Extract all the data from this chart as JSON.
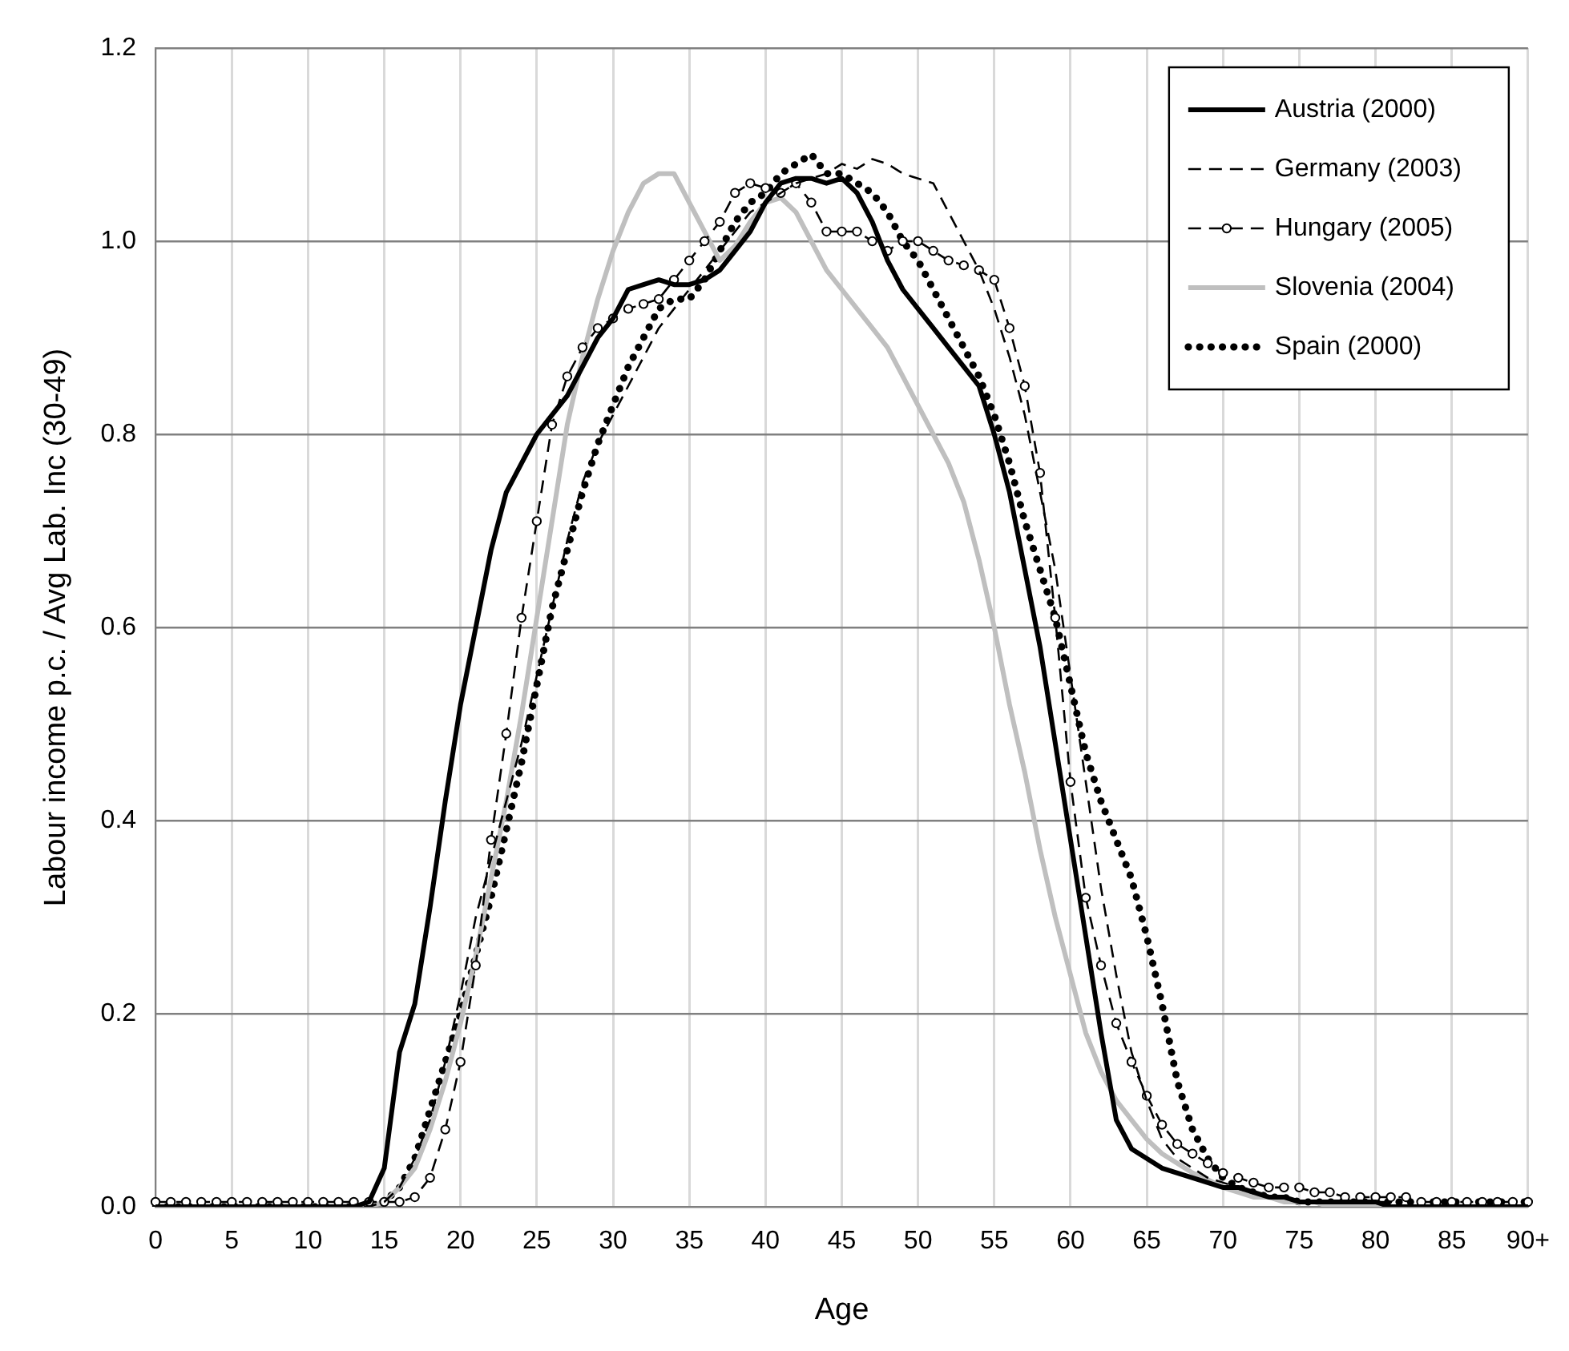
{
  "chart_data": {
    "type": "line",
    "xlabel": "Age",
    "ylabel": "Labour income p.c. / Avg Lab. Inc (30-49)",
    "categories": [
      "0",
      null,
      null,
      null,
      null,
      "5",
      null,
      null,
      null,
      null,
      "10",
      null,
      null,
      null,
      null,
      "15",
      null,
      null,
      null,
      null,
      "20",
      null,
      null,
      null,
      null,
      "25",
      null,
      null,
      null,
      null,
      "30",
      null,
      null,
      null,
      null,
      "35",
      null,
      null,
      null,
      null,
      "40",
      null,
      null,
      null,
      null,
      "45",
      null,
      null,
      null,
      null,
      "50",
      null,
      null,
      null,
      null,
      "55",
      null,
      null,
      null,
      null,
      "60",
      null,
      null,
      null,
      null,
      "65",
      null,
      null,
      null,
      null,
      "70",
      null,
      null,
      null,
      null,
      "75",
      null,
      null,
      null,
      null,
      "80",
      null,
      null,
      null,
      null,
      "85",
      null,
      null,
      null,
      null,
      "90+"
    ],
    "ylim": [
      0,
      1.2
    ],
    "yticks": [
      {
        "value": 0,
        "label": "0.0"
      },
      {
        "value": 0.2,
        "label": "0.2"
      },
      {
        "value": 0.4,
        "label": "0.4"
      },
      {
        "value": 0.6,
        "label": "0.6"
      },
      {
        "value": 0.8,
        "label": "0.8"
      },
      {
        "value": 1,
        "label": "1.0"
      },
      {
        "value": 1.2,
        "label": "1.2"
      }
    ],
    "grid": true,
    "legend": "top right",
    "series": [
      {
        "name": "Austria (2000)",
        "color": "#000000",
        "line_style": "solid",
        "values": [
          0,
          0,
          0,
          0,
          0,
          0,
          0,
          0,
          0,
          0,
          0,
          0,
          0,
          0,
          0.005,
          0.04,
          0.16,
          0.21,
          0.31,
          0.42,
          0.52,
          0.6,
          0.68,
          0.74,
          0.77,
          0.8,
          0.82,
          0.84,
          0.87,
          0.9,
          0.92,
          0.95,
          0.955,
          0.96,
          0.955,
          0.955,
          0.96,
          0.97,
          0.99,
          1.01,
          1.04,
          1.06,
          1.065,
          1.065,
          1.06,
          1.065,
          1.05,
          1.02,
          0.98,
          0.95,
          0.93,
          0.91,
          0.89,
          0.87,
          0.85,
          0.8,
          0.74,
          0.66,
          0.58,
          0.48,
          0.38,
          0.28,
          0.18,
          0.09,
          0.06,
          0.05,
          0.04,
          0.035,
          0.03,
          0.025,
          0.02,
          0.02,
          0.015,
          0.01,
          0.01,
          0.005,
          0.005,
          0.005,
          0.005,
          0.005,
          0.005,
          0,
          0,
          0,
          0,
          0,
          0,
          0,
          0,
          0,
          0
        ]
      },
      {
        "name": "Germany (2003)",
        "color": "#000000",
        "line_style": "dashed",
        "values": [
          0,
          0,
          0,
          0,
          0,
          0,
          0,
          0,
          0,
          0,
          0,
          0,
          0,
          0,
          0,
          0.005,
          0.02,
          0.05,
          0.09,
          0.15,
          0.22,
          0.3,
          0.36,
          0.42,
          0.48,
          0.55,
          0.62,
          0.69,
          0.75,
          0.79,
          0.82,
          0.85,
          0.88,
          0.91,
          0.93,
          0.95,
          0.97,
          0.99,
          1.01,
          1.03,
          1.04,
          1.05,
          1.06,
          1.065,
          1.07,
          1.08,
          1.075,
          1.085,
          1.08,
          1.07,
          1.065,
          1.06,
          1.03,
          1.0,
          0.97,
          0.93,
          0.88,
          0.82,
          0.74,
          0.66,
          0.55,
          0.44,
          0.33,
          0.24,
          0.16,
          0.11,
          0.07,
          0.05,
          0.04,
          0.03,
          0.025,
          0.02,
          0.015,
          0.01,
          0.01,
          0.005,
          0.005,
          0.005,
          0.005,
          0.005,
          0.005,
          0.005,
          0,
          0,
          0,
          0,
          0,
          0,
          0,
          0,
          0
        ]
      },
      {
        "name": "Hungary (2005)",
        "color": "#000000",
        "line_style": "dashed",
        "marker": "circle",
        "values": [
          0.005,
          0.005,
          0.005,
          0.005,
          0.005,
          0.005,
          0.005,
          0.005,
          0.005,
          0.005,
          0.005,
          0.005,
          0.005,
          0.005,
          0.005,
          0.005,
          0.005,
          0.01,
          0.03,
          0.08,
          0.15,
          0.25,
          0.38,
          0.49,
          0.61,
          0.71,
          0.81,
          0.86,
          0.89,
          0.91,
          0.92,
          0.93,
          0.935,
          0.94,
          0.96,
          0.98,
          1.0,
          1.02,
          1.05,
          1.06,
          1.055,
          1.05,
          1.06,
          1.04,
          1.01,
          1.01,
          1.01,
          1.0,
          0.99,
          1.0,
          1.0,
          0.99,
          0.98,
          0.975,
          0.97,
          0.96,
          0.91,
          0.85,
          0.76,
          0.61,
          0.44,
          0.32,
          0.25,
          0.19,
          0.15,
          0.115,
          0.085,
          0.065,
          0.055,
          0.045,
          0.035,
          0.03,
          0.025,
          0.02,
          0.02,
          0.02,
          0.015,
          0.015,
          0.01,
          0.01,
          0.01,
          0.01,
          0.01,
          0.005,
          0.005,
          0.005,
          0.005,
          0.005,
          0.005,
          0.005,
          0.005
        ]
      },
      {
        "name": "Slovenia (2004)",
        "color": "#bfbfbf",
        "line_style": "solid",
        "values": [
          0,
          0,
          0,
          0,
          0,
          0,
          0,
          0,
          0,
          0,
          0,
          0,
          0,
          0,
          0,
          0.005,
          0.02,
          0.04,
          0.08,
          0.13,
          0.19,
          0.26,
          0.34,
          0.42,
          0.51,
          0.61,
          0.71,
          0.81,
          0.88,
          0.94,
          0.99,
          1.03,
          1.06,
          1.07,
          1.07,
          1.04,
          1.01,
          0.98,
          0.995,
          1.02,
          1.04,
          1.045,
          1.03,
          1.0,
          0.97,
          0.95,
          0.93,
          0.91,
          0.89,
          0.86,
          0.83,
          0.8,
          0.77,
          0.73,
          0.67,
          0.6,
          0.52,
          0.45,
          0.37,
          0.3,
          0.24,
          0.18,
          0.14,
          0.11,
          0.09,
          0.07,
          0.055,
          0.045,
          0.035,
          0.028,
          0.02,
          0.015,
          0.01,
          0.01,
          0.005,
          0.005,
          0.005,
          0,
          0,
          0,
          0,
          0,
          0,
          0,
          0,
          0,
          0,
          0,
          0,
          0,
          0
        ]
      },
      {
        "name": "Spain (2000)",
        "color": "#000000",
        "line_style": "dotted",
        "values": [
          0,
          0,
          0,
          0,
          0,
          0,
          0,
          0,
          0,
          0,
          0,
          0,
          0,
          0,
          0,
          0.005,
          0.02,
          0.05,
          0.1,
          0.15,
          0.2,
          0.26,
          0.32,
          0.39,
          0.46,
          0.54,
          0.62,
          0.68,
          0.74,
          0.79,
          0.83,
          0.87,
          0.9,
          0.93,
          0.94,
          0.94,
          0.96,
          0.99,
          1.02,
          1.04,
          1.05,
          1.07,
          1.08,
          1.09,
          1.07,
          1.07,
          1.06,
          1.05,
          1.03,
          1.0,
          0.98,
          0.95,
          0.92,
          0.89,
          0.86,
          0.82,
          0.77,
          0.71,
          0.66,
          0.61,
          0.54,
          0.47,
          0.42,
          0.38,
          0.34,
          0.28,
          0.21,
          0.13,
          0.08,
          0.05,
          0.03,
          0.02,
          0.015,
          0.01,
          0.01,
          0.005,
          0.005,
          0.005,
          0.005,
          0.005,
          0.005,
          0.005,
          0.005,
          0.005,
          0.005,
          0.005,
          0.005,
          0.005,
          0.005,
          0.005,
          0.005
        ]
      }
    ]
  }
}
